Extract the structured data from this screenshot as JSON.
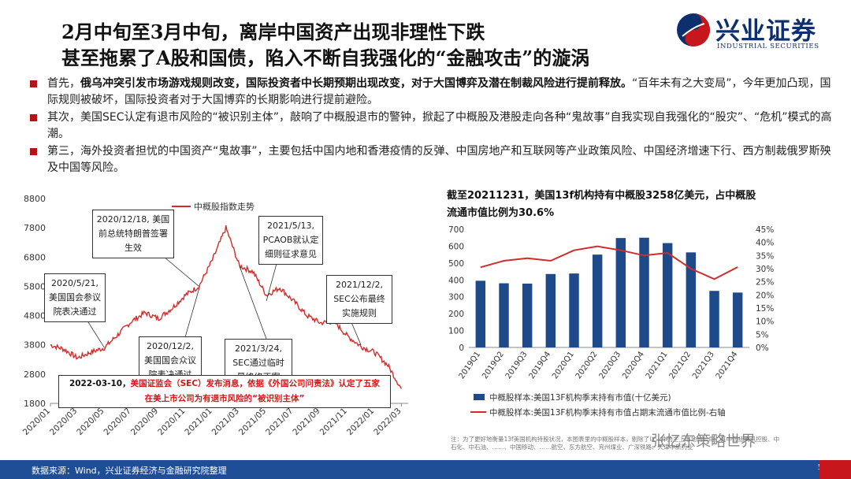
{
  "title": {
    "line1": "2月中旬至3月中旬，离岸中国资产出现非理性下跌",
    "line2": "甚至拖累了A股和国债，陷入不断自我强化的“金融攻击”的漩涡"
  },
  "logo": {
    "name": "兴业证券",
    "en": "INDUSTRIAL SECURITIES",
    "icon": "taiji-icon",
    "colors": {
      "red": "#c8161d",
      "blue": "#0d2f6e"
    }
  },
  "bullets": [
    {
      "pre": "首先，",
      "bold": "俄乌冲突引发市场游戏规则改变，国际投资者中长期预期出现改变，对于大国博弈及潜在制裁风险进行提前释放。",
      "rest": "“百年未有之大变局”，今年更加凸现，国际规则被破坏，国际投资者对于大国博弈的长期影响进行提前避险。"
    },
    {
      "pre": "其次，",
      "bold": "",
      "rest": "美国SEC认定有退市风险的“被识别主体”，敲响了中概股退市的警钟，掀起了中概股及港股走向各种“鬼故事”自我实现自我强化的“股灾”、“危机”模式的高潮。"
    },
    {
      "pre": "第三，",
      "bold": "",
      "rest": "海外投资者担忧的中国资产“鬼故事”，主要包括中国内地和香港疫情的反弹、中国房地产和互联网等产业政策风险、中国经济增速下行、西方制裁俄罗斯殃及中国等风险。"
    }
  ],
  "left_callouts": {
    "c1": "2020/5/21, 美国国会参议院表决通过",
    "c2": "2020/12/18, 美国前总统特朗普签署生效",
    "c3": "2020/12/2, 美国国会众议院表决通过",
    "c4": "2021/3/24, SEC通过临时最终修正案",
    "c5": "2021/5/13, PCAOB就认定细则征求意见",
    "c6": "2021/12/2, SEC公布最终实施规则",
    "c7_red1": "2022-03-10，",
    "c7_red2": "美国证监会（SEC）发布消息，依据《外国公司问责法》认定了五家",
    "c7_red3": "在美上市公司为有退市风险的“被识别主体”"
  },
  "right_title": "截至20211231，美国13f机构持有中概股3258亿美元，占中概股流通市值比例为30.6%",
  "footnote": "注：为了更好地衡量13f美国机构持股状况，本图表里的中概股样本，剔除了以…作为主上市地的公司，其中包括腾讯控股、中石化、中石油、……、中国移动、……航空、东方航空、兖州煤业、广深铁路、天津中新药业",
  "watermark": "张忆东策略世界",
  "footer": {
    "source": "数据来源：Wind，兴业证券经济与金融研究院整理",
    "page": "5"
  },
  "colors": {
    "accent_red": "#c8161d",
    "navy": "#1f4d96",
    "bar": "#1f4a8a",
    "line_red": "#d22b2b"
  },
  "chart_data": [
    {
      "type": "line",
      "legend": [
        "中概股指数走势"
      ],
      "legend_placement": "top-center",
      "x_ticks": [
        "2020/01",
        "2020/03",
        "2020/05",
        "2020/07",
        "2020/09",
        "2020/11",
        "2021/01",
        "2021/03",
        "2021/05",
        "2021/07",
        "2021/09",
        "2021/11",
        "2022/01",
        "2022/03"
      ],
      "ylim": [
        1800,
        8800
      ],
      "y_ticks": [
        "1800",
        "2800",
        "3800",
        "4800",
        "5800",
        "6800",
        "7800",
        "8800"
      ],
      "series": [
        {
          "name": "中概股指数走势",
          "color": "#d22b2b",
          "points": [
            [
              "2020/01",
              3800
            ],
            [
              "2020/02",
              3650
            ],
            [
              "2020/03",
              3350
            ],
            [
              "2020/04",
              3550
            ],
            [
              "2020/05",
              3700
            ],
            [
              "2020/06",
              4150
            ],
            [
              "2020/07",
              4600
            ],
            [
              "2020/08",
              4900
            ],
            [
              "2020/09",
              4700
            ],
            [
              "2020/10",
              5050
            ],
            [
              "2020/11",
              5500
            ],
            [
              "2020/12",
              5800
            ],
            [
              "2021/01",
              6700
            ],
            [
              "2021/02",
              7800
            ],
            [
              "2021/03",
              6500
            ],
            [
              "2021/04",
              6300
            ],
            [
              "2021/05",
              5500
            ],
            [
              "2021/06",
              5750
            ],
            [
              "2021/07",
              5300
            ],
            [
              "2021/08",
              4800
            ],
            [
              "2021/09",
              4550
            ],
            [
              "2021/10",
              4600
            ],
            [
              "2021/11",
              4100
            ],
            [
              "2021/12",
              3750
            ],
            [
              "2022/01",
              3550
            ],
            [
              "2022/02",
              3100
            ],
            [
              "2022/03",
              2300
            ]
          ]
        }
      ],
      "grid": false
    },
    {
      "type": "bar",
      "categories": [
        "2019Q1",
        "2019Q2",
        "2019Q3",
        "2019Q4",
        "2020Q1",
        "2020Q2",
        "2020Q3",
        "2020Q4",
        "2021Q1",
        "2021Q2",
        "2021Q3",
        "2021Q4"
      ],
      "series": [
        {
          "name": "中概股样本:美国13F机构季末持有市值(十亿美元)",
          "type": "bar",
          "axis": "left",
          "color": "#1f4a8a",
          "values": [
            395,
            380,
            378,
            435,
            438,
            550,
            648,
            650,
            618,
            563,
            335,
            325
          ]
        },
        {
          "name": "中概股样本:美国13F机构季末持有市值占期末流通市值比例-右轴",
          "type": "line",
          "axis": "right",
          "color": "#d22b2b",
          "values": [
            0.305,
            0.33,
            0.34,
            0.33,
            0.37,
            0.385,
            0.37,
            0.35,
            0.36,
            0.3,
            0.26,
            0.306
          ]
        }
      ],
      "ylim_left": [
        0,
        700
      ],
      "y_ticks_left": [
        "0",
        "100",
        "200",
        "300",
        "400",
        "500",
        "600",
        "700"
      ],
      "ylim_right": [
        0,
        0.45
      ],
      "y_ticks_right": [
        "0%",
        "5%",
        "10%",
        "15%",
        "20%",
        "25%",
        "30%",
        "35%",
        "40%",
        "45%"
      ],
      "legend_placement": "bottom",
      "grid": false
    }
  ]
}
